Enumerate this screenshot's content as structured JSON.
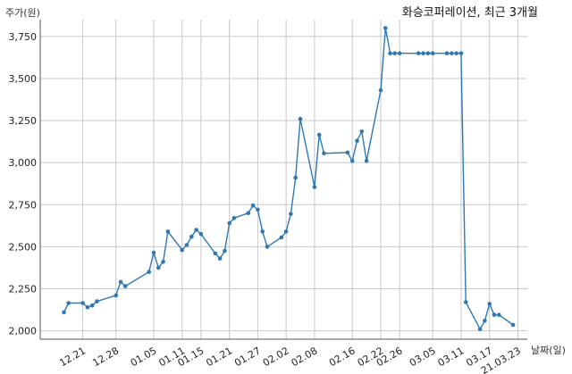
{
  "chart_data": {
    "type": "line",
    "title": "화승코퍼레이션, 최근 3개월",
    "ylabel": "주가(원)",
    "xlabel": "날짜(일)",
    "ylim": [
      1950,
      3850
    ],
    "yticks": [
      2000,
      2250,
      2500,
      2750,
      3000,
      3250,
      3500,
      3750
    ],
    "ytick_labels": [
      "2,000",
      "2,250",
      "2,500",
      "2,750",
      "3,000",
      "3,250",
      "3,500",
      "3,750"
    ],
    "grid": true,
    "color": "#2f78b4",
    "x": [
      "20.12.17",
      "20.12.18",
      "20.12.21",
      "20.12.22",
      "20.12.23",
      "20.12.24",
      "20.12.28",
      "20.12.29",
      "20.12.30",
      "21.01.04",
      "21.01.05",
      "21.01.06",
      "21.01.07",
      "21.01.08",
      "21.01.11",
      "21.01.12",
      "21.01.13",
      "21.01.14",
      "21.01.15",
      "21.01.18",
      "21.01.19",
      "21.01.20",
      "21.01.21",
      "21.01.22",
      "21.01.25",
      "21.01.26",
      "21.01.27",
      "21.01.28",
      "21.01.29",
      "21.02.01",
      "21.02.02",
      "21.02.03",
      "21.02.04",
      "21.02.05",
      "21.02.08",
      "21.02.09",
      "21.02.10",
      "21.02.15",
      "21.02.16",
      "21.02.17",
      "21.02.18",
      "21.02.19",
      "21.02.22",
      "21.02.23",
      "21.02.24",
      "21.02.25",
      "21.02.26",
      "21.03.02",
      "21.03.03",
      "21.03.04",
      "21.03.05",
      "21.03.08",
      "21.03.09",
      "21.03.10",
      "21.03.11",
      "21.03.12",
      "21.03.15",
      "21.03.16",
      "21.03.17",
      "21.03.18",
      "21.03.19",
      "21.03.22"
    ],
    "values": [
      2110,
      2165,
      2165,
      2140,
      2150,
      2175,
      2210,
      2290,
      2265,
      2350,
      2465,
      2375,
      2410,
      2590,
      2480,
      2510,
      2560,
      2600,
      2575,
      2460,
      2430,
      2475,
      2640,
      2670,
      2700,
      2745,
      2720,
      2590,
      2500,
      2555,
      2590,
      2695,
      2910,
      3260,
      2855,
      3165,
      3055,
      3060,
      3010,
      3130,
      3185,
      3010,
      3430,
      3800,
      3650,
      3650,
      3650,
      3650,
      3650,
      3650,
      3650,
      3650,
      3650,
      3650,
      3650,
      2170,
      2010,
      2060,
      2160,
      2095,
      2095,
      2035
    ],
    "xticks": [
      "20.12.21",
      "20.12.28",
      "21.01.05",
      "21.01.11",
      "21.01.15",
      "21.01.21",
      "21.01.27",
      "21.02.02",
      "21.02.08",
      "21.02.16",
      "21.02.22",
      "21.02.26",
      "21.03.05",
      "21.03.11",
      "21.03.17",
      "21.03.23"
    ],
    "xtick_labels": [
      "12.21",
      "12.28",
      "01.05",
      "01.11",
      "01.15",
      "01.21",
      "01.27",
      "02.02",
      "02.08",
      "02.16",
      "02.22",
      "02.26",
      "03.05",
      "03.11",
      "03.17",
      "21.03.23"
    ]
  }
}
